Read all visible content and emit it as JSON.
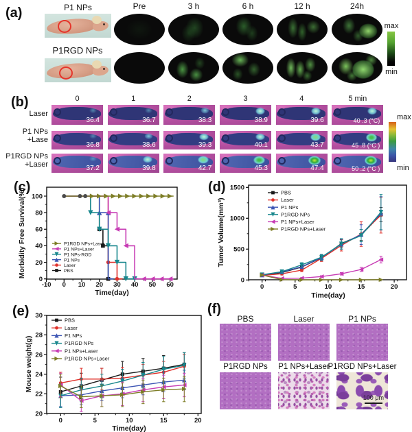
{
  "figure": {
    "a": {
      "label": "(a)",
      "col_headers": [
        "Pre",
        "3 h",
        "6 h",
        "12 h",
        "24h"
      ],
      "row_labels": [
        "P1 NPs",
        "P1RGD NPs"
      ],
      "colorbar": {
        "top": "max",
        "bottom": "min"
      }
    },
    "b": {
      "label": "(b)",
      "col_headers": [
        "0",
        "1",
        "2",
        "3",
        "4",
        "5 min"
      ],
      "rows": [
        {
          "label_lines": [
            "Laser"
          ],
          "temps": [
            "36.4",
            "36.7",
            "38.3",
            "38.9",
            "39.6",
            "40 .3 (°C)"
          ]
        },
        {
          "label_lines": [
            "P1  NPs",
            "+Lase"
          ],
          "temps": [
            "36.8",
            "38.6",
            "39.3",
            "40.1",
            "43.7",
            "45 .8 (°C )"
          ]
        },
        {
          "label_lines": [
            "P1RGD NPs",
            "+Laser"
          ],
          "temps": [
            "37.2",
            "39.8",
            "42.7",
            "45.3",
            "47.4",
            "50 .2 (°C )"
          ]
        }
      ],
      "colorbar": {
        "top": "max",
        "bottom": "min"
      }
    },
    "c": {
      "label": "(c)"
    },
    "d": {
      "label": "(d)"
    },
    "e": {
      "label": "(e)"
    },
    "f": {
      "label": "(f)",
      "top_labels": [
        "PBS",
        "Laser",
        "P1 NPs"
      ],
      "bottom_labels": [
        "P1RGD NPs",
        "P1 NPs+Laser",
        "P1RGD NPs+Laser"
      ],
      "scalebar": "100 μm"
    }
  },
  "chart_data": [
    {
      "id": "c",
      "type": "line",
      "step": true,
      "xlabel": "Time(day)",
      "ylabel": "Morbidity Free Survival(%)",
      "xlim": [
        -10,
        64
      ],
      "ylim": [
        0,
        100
      ],
      "xticks": [
        -10,
        0,
        10,
        20,
        30,
        40,
        50,
        60
      ],
      "yticks": [
        0,
        20,
        40,
        60,
        80,
        100
      ],
      "legend_position": "lower-left",
      "series": [
        {
          "name": "P1RGD NPs+Laser",
          "color": "#7d7d26",
          "marker": "triangle-right",
          "points": [
            [
              0,
              100
            ],
            [
              62,
              100
            ]
          ],
          "markers": [
            [
              16,
              100
            ],
            [
              20,
              100
            ],
            [
              24,
              100
            ],
            [
              28,
              100
            ],
            [
              32,
              100
            ],
            [
              36,
              100
            ],
            [
              40,
              100
            ],
            [
              44,
              100
            ],
            [
              48,
              100
            ],
            [
              52,
              100
            ],
            [
              56,
              100
            ],
            [
              60,
              100
            ]
          ]
        },
        {
          "name": "P1 NPs+Laser",
          "color": "#c73bb4",
          "marker": "triangle-left",
          "points": [
            [
              0,
              100
            ],
            [
              25,
              100
            ],
            [
              25,
              80
            ],
            [
              30,
              80
            ],
            [
              30,
              60
            ],
            [
              35,
              60
            ],
            [
              35,
              40
            ],
            [
              40,
              40
            ],
            [
              40,
              0
            ],
            [
              62,
              0
            ]
          ],
          "markers": [
            [
              25,
              80
            ],
            [
              30,
              60
            ],
            [
              35,
              40
            ],
            [
              45,
              0
            ],
            [
              50,
              0
            ],
            [
              55,
              0
            ],
            [
              60,
              0
            ]
          ]
        },
        {
          "name": "P1 NPs-RGD",
          "color": "#17868c",
          "marker": "triangle-down",
          "points": [
            [
              0,
              100
            ],
            [
              15,
              100
            ],
            [
              15,
              80
            ],
            [
              20,
              80
            ],
            [
              20,
              60
            ],
            [
              25,
              60
            ],
            [
              25,
              40
            ],
            [
              30,
              40
            ],
            [
              30,
              20
            ],
            [
              35,
              20
            ],
            [
              35,
              0
            ],
            [
              42,
              0
            ]
          ],
          "markers": [
            [
              15,
              80
            ],
            [
              20,
              60
            ],
            [
              25,
              40
            ],
            [
              30,
              20
            ],
            [
              35,
              0
            ],
            [
              40,
              0
            ]
          ]
        },
        {
          "name": "P1 NPs",
          "color": "#3c55b4",
          "marker": "triangle-up",
          "points": [
            [
              0,
              100
            ],
            [
              20,
              100
            ],
            [
              20,
              80
            ],
            [
              25,
              80
            ],
            [
              25,
              0
            ],
            [
              28,
              0
            ]
          ],
          "markers": [
            [
              20,
              80
            ],
            [
              25,
              80
            ]
          ]
        },
        {
          "name": "Laser",
          "color": "#e0312a",
          "marker": "circle",
          "points": [
            [
              0,
              100
            ],
            [
              25,
              100
            ],
            [
              25,
              20
            ],
            [
              30,
              20
            ],
            [
              30,
              0
            ],
            [
              33,
              0
            ]
          ],
          "markers": [
            [
              25,
              20
            ],
            [
              30,
              0
            ]
          ]
        },
        {
          "name": "PBS",
          "color": "#1a1a1a",
          "marker": "square",
          "points": [
            [
              0,
              100
            ],
            [
              20,
              100
            ],
            [
              20,
              60
            ],
            [
              22,
              60
            ],
            [
              22,
              40
            ],
            [
              25,
              40
            ],
            [
              25,
              0
            ],
            [
              27,
              0
            ]
          ],
          "markers": [
            [
              20,
              60
            ],
            [
              22,
              40
            ],
            [
              25,
              0
            ]
          ]
        }
      ],
      "overlap_markers": {
        "color": "#4a4a4a",
        "shape": "circle",
        "points": [
          [
            0,
            100
          ],
          [
            9,
            100
          ],
          [
            12,
            100
          ]
        ]
      }
    },
    {
      "id": "d",
      "type": "line",
      "xlabel": "Time(day)",
      "ylabel": "Tumor Volume(mm³)",
      "x": [
        0,
        3,
        6,
        9,
        12,
        15,
        18
      ],
      "xlim": [
        -2,
        21
      ],
      "ylim": [
        0,
        1500
      ],
      "xticks": [
        0,
        5,
        10,
        15,
        20
      ],
      "yticks": [
        0,
        500,
        1000,
        1500
      ],
      "legend_position": "upper-left",
      "series": [
        {
          "name": "PBS",
          "color": "#1a1a1a",
          "marker": "square",
          "values": [
            80,
            120,
            210,
            360,
            590,
            730,
            1060
          ],
          "errors": [
            15,
            25,
            30,
            45,
            70,
            90,
            115
          ]
        },
        {
          "name": "Laser",
          "color": "#e0312a",
          "marker": "circle",
          "values": [
            75,
            100,
            160,
            350,
            560,
            745,
            1050
          ],
          "errors": [
            15,
            20,
            25,
            50,
            90,
            200,
            290
          ]
        },
        {
          "name": "P1 NPs",
          "color": "#3c55b4",
          "marker": "triangle-up",
          "values": [
            80,
            130,
            215,
            365,
            580,
            735,
            1080
          ],
          "errors": [
            15,
            25,
            30,
            45,
            80,
            160,
            270
          ]
        },
        {
          "name": "P1RGD NPs",
          "color": "#17868c",
          "marker": "triangle-down",
          "values": [
            85,
            135,
            245,
            370,
            585,
            720,
            1100
          ],
          "errors": [
            15,
            25,
            35,
            45,
            85,
            100,
            285
          ]
        },
        {
          "name": "P1 NPs+Laser",
          "color": "#c73bb4",
          "marker": "triangle-left",
          "values": [
            80,
            25,
            30,
            55,
            100,
            170,
            330
          ],
          "errors": [
            10,
            8,
            10,
            15,
            20,
            35,
            55
          ]
        },
        {
          "name": "P1RGD NPs+Laser",
          "color": "#7d7d26",
          "marker": "triangle-right",
          "values": [
            80,
            5,
            2,
            2,
            2,
            2,
            5
          ],
          "errors": [
            10,
            4,
            2,
            2,
            2,
            2,
            4
          ]
        }
      ]
    },
    {
      "id": "e",
      "type": "line",
      "xlabel": "Time(day)",
      "ylabel": "Mouse weight(g)",
      "x": [
        0,
        3,
        6,
        9,
        12,
        15,
        18
      ],
      "xlim": [
        -2,
        21
      ],
      "ylim": [
        20,
        30
      ],
      "xticks": [
        0,
        5,
        10,
        15,
        20
      ],
      "yticks": [
        20,
        22,
        24,
        26,
        28,
        30
      ],
      "legend_position": "upper-left",
      "series": [
        {
          "name": "PBS",
          "color": "#1a1a1a",
          "marker": "square",
          "values": [
            22.2,
            22.8,
            23.4,
            24.0,
            24.3,
            24.6,
            25.0
          ],
          "errors": [
            1.5,
            1.3,
            1.2,
            1.3,
            1.3,
            1.3,
            1.2
          ]
        },
        {
          "name": "Laser",
          "color": "#e0312a",
          "marker": "circle",
          "values": [
            23.1,
            23.5,
            23.5,
            23.6,
            23.9,
            24.2,
            24.8
          ],
          "errors": [
            1.1,
            1.1,
            1.1,
            1.1,
            1.1,
            1.1,
            1.2
          ]
        },
        {
          "name": "P1 NPs",
          "color": "#3c55b4",
          "marker": "triangle-up",
          "values": [
            21.8,
            21.9,
            22.3,
            22.6,
            22.9,
            23.2,
            23.4
          ],
          "errors": [
            1.1,
            1.0,
            1.0,
            1.0,
            1.0,
            1.0,
            1.0
          ]
        },
        {
          "name": "P1RGD NPs",
          "color": "#17868c",
          "marker": "triangle-down",
          "values": [
            21.8,
            22.4,
            22.8,
            23.3,
            23.9,
            24.5,
            24.9
          ],
          "errors": [
            1.2,
            1.2,
            1.2,
            1.2,
            1.3,
            1.3,
            1.3
          ]
        },
        {
          "name": "P1 NPs+Laser",
          "color": "#c73bb4",
          "marker": "triangle-left",
          "values": [
            22.9,
            21.3,
            21.8,
            22.0,
            22.4,
            22.7,
            22.9
          ],
          "errors": [
            1.2,
            1.1,
            1.1,
            1.2,
            1.2,
            1.2,
            1.2
          ]
        },
        {
          "name": "P1RGD NPs+Laser",
          "color": "#7d7d26",
          "marker": "triangle-right",
          "values": [
            22.8,
            21.7,
            21.8,
            21.9,
            22.2,
            22.4,
            22.5
          ],
          "errors": [
            1.2,
            1.1,
            1.1,
            1.2,
            1.2,
            1.2,
            1.3
          ]
        }
      ]
    }
  ]
}
